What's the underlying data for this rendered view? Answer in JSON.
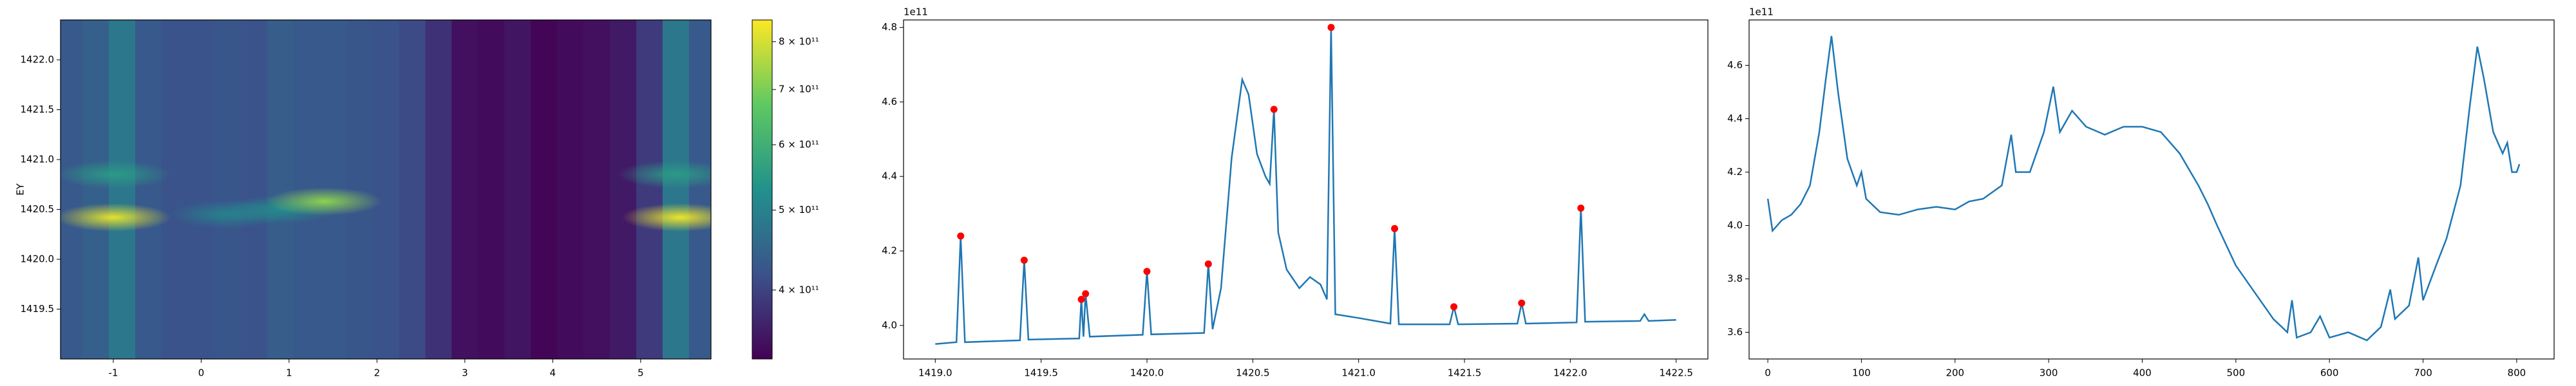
{
  "chart_data": [
    {
      "type": "heatmap",
      "ylabel": "EY",
      "xlim": [
        -1.6,
        5.8
      ],
      "ylim": [
        1419.0,
        1422.4
      ],
      "xticks": [
        -1,
        0,
        1,
        2,
        3,
        4,
        5
      ],
      "yticks": [
        1419.5,
        {
          "value": 1420,
          "label": "1420.0"
        },
        1420.5,
        {
          "value": 1421,
          "label": "1421.0"
        },
        1421.5,
        {
          "value": 1422,
          "label": "1422.0"
        }
      ],
      "x_centers": [
        -1.5,
        -1.2,
        -0.9,
        -0.6,
        -0.3,
        0,
        0.3,
        0.6,
        0.9,
        1.2,
        1.5,
        1.8,
        2.1,
        2.4,
        2.7,
        3.0,
        3.3,
        3.6,
        3.9,
        4.2,
        4.5,
        4.8,
        5.1,
        5.4,
        5.7
      ],
      "column_values": [
        430000000000.0,
        440000000000.0,
        480000000000.0,
        430000000000.0,
        420000000000.0,
        420000000000.0,
        425000000000.0,
        420000000000.0,
        435000000000.0,
        430000000000.0,
        430000000000.0,
        425000000000.0,
        420000000000.0,
        410000000000.0,
        380000000000.0,
        345000000000.0,
        340000000000.0,
        350000000000.0,
        335000000000.0,
        340000000000.0,
        345000000000.0,
        355000000000.0,
        390000000000.0,
        480000000000.0,
        430000000000.0
      ],
      "hotspots": [
        {
          "x": -1.0,
          "y": 1420.42,
          "value": 820000000000.0
        },
        {
          "x": -1.0,
          "y": 1420.85,
          "value": 550000000000.0
        },
        {
          "x": 0.3,
          "y": 1420.45,
          "value": 500000000000.0
        },
        {
          "x": 0.9,
          "y": 1420.5,
          "value": 520000000000.0
        },
        {
          "x": 1.4,
          "y": 1420.58,
          "value": 720000000000.0
        },
        {
          "x": 5.45,
          "y": 1420.42,
          "value": 830000000000.0
        },
        {
          "x": 5.4,
          "y": 1420.85,
          "value": 550000000000.0
        }
      ],
      "colorbar": {
        "lim": [
          330000000000.0,
          850000000000.0
        ],
        "log": true,
        "ticks": [
          {
            "value": 400000000000.0,
            "label": "4 × 10¹¹"
          },
          {
            "value": 500000000000.0,
            "label": "5 × 10¹¹"
          },
          {
            "value": 600000000000.0,
            "label": "6 × 10¹¹"
          },
          {
            "value": 700000000000.0,
            "label": "7 × 10¹¹"
          },
          {
            "value": 800000000000.0,
            "label": "8 × 10¹¹"
          }
        ]
      }
    },
    {
      "type": "line",
      "y_offset_label": "1e11",
      "xlim": [
        1418.85,
        1422.65
      ],
      "ylim": [
        3.91,
        4.82
      ],
      "xticks": [
        {
          "value": 1419,
          "label": "1419.0"
        },
        1419.5,
        {
          "value": 1420,
          "label": "1420.0"
        },
        1420.5,
        {
          "value": 1421,
          "label": "1421.0"
        },
        1421.5,
        {
          "value": 1422,
          "label": "1422.0"
        },
        1422.5
      ],
      "yticks": [
        {
          "value": 4,
          "label": "4.0"
        },
        4.2,
        4.4,
        4.6,
        4.8
      ],
      "series": [
        {
          "kind": "line",
          "color": "#1f77b4",
          "x": [
            1419.0,
            1419.1,
            1419.12,
            1419.14,
            1419.4,
            1419.42,
            1419.44,
            1419.68,
            1419.69,
            1419.7,
            1419.71,
            1419.73,
            1419.98,
            1420.0,
            1420.02,
            1420.27,
            1420.29,
            1420.31,
            1420.35,
            1420.4,
            1420.45,
            1420.48,
            1420.52,
            1420.56,
            1420.58,
            1420.6,
            1420.62,
            1420.66,
            1420.72,
            1420.77,
            1420.82,
            1420.85,
            1420.87,
            1420.89,
            1421.0,
            1421.15,
            1421.17,
            1421.19,
            1421.43,
            1421.45,
            1421.47,
            1421.75,
            1421.77,
            1421.79,
            1422.03,
            1422.05,
            1422.07,
            1422.33,
            1422.35,
            1422.37,
            1422.5
          ],
          "values": [
            3.95,
            3.955,
            4.24,
            3.955,
            3.96,
            4.175,
            3.962,
            3.965,
            4.07,
            3.97,
            4.085,
            3.97,
            3.975,
            4.145,
            3.976,
            3.98,
            4.165,
            3.99,
            4.1,
            4.45,
            4.66,
            4.62,
            4.46,
            4.4,
            4.38,
            4.58,
            4.25,
            4.15,
            4.1,
            4.13,
            4.11,
            4.07,
            4.8,
            4.03,
            4.02,
            4.005,
            4.26,
            4.003,
            4.003,
            4.05,
            4.003,
            4.005,
            4.06,
            4.005,
            4.008,
            4.315,
            4.01,
            4.012,
            4.03,
            4.012,
            4.015
          ]
        },
        {
          "kind": "scatter",
          "color": "#ff0000",
          "x": [
            1419.12,
            1419.42,
            1419.69,
            1419.71,
            1420.0,
            1420.29,
            1420.6,
            1420.87,
            1421.17,
            1421.45,
            1421.77,
            1422.05
          ],
          "values": [
            4.24,
            4.175,
            4.07,
            4.085,
            4.145,
            4.165,
            4.58,
            4.8,
            4.26,
            4.05,
            4.06,
            4.315
          ]
        }
      ]
    },
    {
      "type": "line",
      "y_offset_label": "1e11",
      "xlim": [
        -20,
        840
      ],
      "ylim": [
        3.5,
        4.77
      ],
      "xticks": [
        0,
        100,
        200,
        300,
        400,
        500,
        600,
        700,
        800
      ],
      "yticks": [
        3.6,
        3.8,
        {
          "value": 4,
          "label": "4.0"
        },
        4.2,
        4.4,
        4.6
      ],
      "series": [
        {
          "kind": "line",
          "color": "#1f77b4",
          "x": [
            0,
            5,
            15,
            25,
            35,
            45,
            55,
            62,
            68,
            75,
            85,
            95,
            100,
            105,
            120,
            140,
            160,
            180,
            200,
            215,
            230,
            250,
            260,
            265,
            280,
            295,
            305,
            312,
            325,
            340,
            360,
            380,
            400,
            420,
            440,
            460,
            470,
            480,
            500,
            520,
            540,
            555,
            560,
            565,
            580,
            590,
            600,
            620,
            640,
            655,
            665,
            670,
            685,
            695,
            700,
            715,
            725,
            740,
            750,
            758,
            765,
            775,
            785,
            790,
            795,
            800,
            803
          ],
          "values": [
            4.1,
            3.98,
            4.02,
            4.04,
            4.08,
            4.15,
            4.35,
            4.55,
            4.71,
            4.5,
            4.25,
            4.15,
            4.2,
            4.1,
            4.05,
            4.04,
            4.06,
            4.07,
            4.06,
            4.09,
            4.1,
            4.15,
            4.34,
            4.2,
            4.2,
            4.35,
            4.52,
            4.35,
            4.43,
            4.37,
            4.34,
            4.37,
            4.37,
            4.35,
            4.27,
            4.15,
            4.08,
            4.0,
            3.85,
            3.75,
            3.65,
            3.6,
            3.72,
            3.58,
            3.6,
            3.66,
            3.58,
            3.6,
            3.57,
            3.62,
            3.76,
            3.65,
            3.7,
            3.88,
            3.72,
            3.86,
            3.95,
            4.15,
            4.45,
            4.67,
            4.55,
            4.35,
            4.27,
            4.31,
            4.2,
            4.2,
            4.23
          ]
        }
      ]
    }
  ]
}
